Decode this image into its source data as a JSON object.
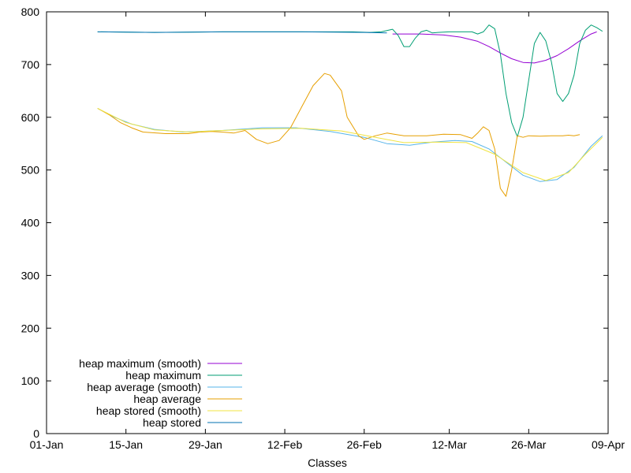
{
  "chart_data": {
    "type": "line",
    "title": "",
    "xlabel": "Classes",
    "ylabel": "",
    "x_axis": {
      "type": "date",
      "min": "2024-01-01",
      "max": "2024-04-09",
      "ticks": [
        {
          "date": "2024-01-01",
          "label": "01-Jan"
        },
        {
          "date": "2024-01-15",
          "label": "15-Jan"
        },
        {
          "date": "2024-01-29",
          "label": "29-Jan"
        },
        {
          "date": "2024-02-12",
          "label": "12-Feb"
        },
        {
          "date": "2024-02-26",
          "label": "26-Feb"
        },
        {
          "date": "2024-03-12",
          "label": "12-Mar"
        },
        {
          "date": "2024-03-26",
          "label": "26-Mar"
        },
        {
          "date": "2024-04-09",
          "label": "09-Apr"
        }
      ]
    },
    "y_axis": {
      "min": 0,
      "max": 800,
      "ticks": [
        0,
        100,
        200,
        300,
        400,
        500,
        600,
        700,
        800
      ]
    },
    "grid": false,
    "legend_position": "bottom-left",
    "series": [
      {
        "name": "heap maximum (smooth)",
        "color": "#9400d3",
        "points": [
          [
            "2024-03-02",
            758
          ],
          [
            "2024-03-07",
            758
          ],
          [
            "2024-03-11",
            756
          ],
          [
            "2024-03-14",
            752
          ],
          [
            "2024-03-17",
            744
          ],
          [
            "2024-03-19",
            734
          ],
          [
            "2024-03-21",
            722
          ],
          [
            "2024-03-23",
            711
          ],
          [
            "2024-03-25",
            704
          ],
          [
            "2024-03-27",
            703
          ],
          [
            "2024-03-29",
            708
          ],
          [
            "2024-03-31",
            717
          ],
          [
            "2024-04-02",
            730
          ],
          [
            "2024-04-04",
            745
          ],
          [
            "2024-04-06",
            758
          ],
          [
            "2024-04-07",
            762
          ]
        ]
      },
      {
        "name": "heap maximum",
        "color": "#009e73",
        "points": [
          [
            "2024-01-10",
            762
          ],
          [
            "2024-01-20",
            761
          ],
          [
            "2024-02-01",
            762
          ],
          [
            "2024-02-15",
            762
          ],
          [
            "2024-02-24",
            762
          ],
          [
            "2024-02-27",
            761
          ],
          [
            "2024-02-29",
            762
          ],
          [
            "2024-03-02",
            767
          ],
          [
            "2024-03-03",
            755
          ],
          [
            "2024-03-04",
            734
          ],
          [
            "2024-03-05",
            734
          ],
          [
            "2024-03-06",
            750
          ],
          [
            "2024-03-07",
            762
          ],
          [
            "2024-03-08",
            765
          ],
          [
            "2024-03-09",
            760
          ],
          [
            "2024-03-10",
            761
          ],
          [
            "2024-03-12",
            762
          ],
          [
            "2024-03-14",
            762
          ],
          [
            "2024-03-16",
            762
          ],
          [
            "2024-03-17",
            758
          ],
          [
            "2024-03-18",
            762
          ],
          [
            "2024-03-19",
            775
          ],
          [
            "2024-03-20",
            768
          ],
          [
            "2024-03-21",
            720
          ],
          [
            "2024-03-22",
            645
          ],
          [
            "2024-03-23",
            590
          ],
          [
            "2024-03-24",
            563
          ],
          [
            "2024-03-25",
            600
          ],
          [
            "2024-03-26",
            670
          ],
          [
            "2024-03-27",
            740
          ],
          [
            "2024-03-28",
            761
          ],
          [
            "2024-03-29",
            745
          ],
          [
            "2024-03-30",
            705
          ],
          [
            "2024-03-31",
            645
          ],
          [
            "2024-04-01",
            630
          ],
          [
            "2024-04-02",
            645
          ],
          [
            "2024-04-03",
            680
          ],
          [
            "2024-04-04",
            740
          ],
          [
            "2024-04-05",
            765
          ],
          [
            "2024-04-06",
            775
          ],
          [
            "2024-04-07",
            770
          ],
          [
            "2024-04-08",
            763
          ]
        ]
      },
      {
        "name": "heap average (smooth)",
        "color": "#56b4e9",
        "points": [
          [
            "2024-01-10",
            617
          ],
          [
            "2024-01-13",
            600
          ],
          [
            "2024-01-16",
            587
          ],
          [
            "2024-01-20",
            577
          ],
          [
            "2024-01-25",
            572
          ],
          [
            "2024-02-01",
            575
          ],
          [
            "2024-02-08",
            580
          ],
          [
            "2024-02-14",
            580
          ],
          [
            "2024-02-20",
            573
          ],
          [
            "2024-02-26",
            562
          ],
          [
            "2024-03-01",
            550
          ],
          [
            "2024-03-05",
            547
          ],
          [
            "2024-03-09",
            553
          ],
          [
            "2024-03-13",
            556
          ],
          [
            "2024-03-16",
            554
          ],
          [
            "2024-03-19",
            540
          ],
          [
            "2024-03-22",
            515
          ],
          [
            "2024-03-25",
            490
          ],
          [
            "2024-03-28",
            478
          ],
          [
            "2024-03-31",
            482
          ],
          [
            "2024-04-03",
            505
          ],
          [
            "2024-04-06",
            545
          ],
          [
            "2024-04-08",
            565
          ]
        ]
      },
      {
        "name": "heap average",
        "color": "#e69f00",
        "points": [
          [
            "2024-01-10",
            617
          ],
          [
            "2024-01-12",
            605
          ],
          [
            "2024-01-14",
            590
          ],
          [
            "2024-01-16",
            580
          ],
          [
            "2024-01-18",
            572
          ],
          [
            "2024-01-22",
            569
          ],
          [
            "2024-01-26",
            569
          ],
          [
            "2024-01-28",
            572
          ],
          [
            "2024-01-30",
            573
          ],
          [
            "2024-02-01",
            572
          ],
          [
            "2024-02-03",
            570
          ],
          [
            "2024-02-05",
            575
          ],
          [
            "2024-02-07",
            558
          ],
          [
            "2024-02-09",
            550
          ],
          [
            "2024-02-11",
            556
          ],
          [
            "2024-02-13",
            580
          ],
          [
            "2024-02-15",
            620
          ],
          [
            "2024-02-17",
            660
          ],
          [
            "2024-02-19",
            683
          ],
          [
            "2024-02-20",
            680
          ],
          [
            "2024-02-22",
            650
          ],
          [
            "2024-02-23",
            600
          ],
          [
            "2024-02-25",
            565
          ],
          [
            "2024-02-26",
            558
          ],
          [
            "2024-02-28",
            565
          ],
          [
            "2024-03-01",
            570
          ],
          [
            "2024-03-04",
            565
          ],
          [
            "2024-03-08",
            565
          ],
          [
            "2024-03-11",
            568
          ],
          [
            "2024-03-14",
            567
          ],
          [
            "2024-03-16",
            560
          ],
          [
            "2024-03-17",
            570
          ],
          [
            "2024-03-18",
            582
          ],
          [
            "2024-03-19",
            575
          ],
          [
            "2024-03-20",
            540
          ],
          [
            "2024-03-21",
            465
          ],
          [
            "2024-03-22",
            450
          ],
          [
            "2024-03-23",
            500
          ],
          [
            "2024-03-24",
            565
          ],
          [
            "2024-03-25",
            562
          ],
          [
            "2024-03-26",
            565
          ],
          [
            "2024-03-28",
            564
          ],
          [
            "2024-03-30",
            565
          ],
          [
            "2024-04-01",
            565
          ],
          [
            "2024-04-02",
            566
          ],
          [
            "2024-04-03",
            565
          ],
          [
            "2024-04-04",
            567
          ]
        ]
      },
      {
        "name": "heap stored (smooth)",
        "color": "#f0e442",
        "points": [
          [
            "2024-01-10",
            617
          ],
          [
            "2024-01-15",
            590
          ],
          [
            "2024-01-20",
            576
          ],
          [
            "2024-01-26",
            572
          ],
          [
            "2024-02-01",
            575
          ],
          [
            "2024-02-08",
            578
          ],
          [
            "2024-02-15",
            579
          ],
          [
            "2024-02-22",
            574
          ],
          [
            "2024-02-28",
            562
          ],
          [
            "2024-03-04",
            552
          ],
          [
            "2024-03-10",
            553
          ],
          [
            "2024-03-15",
            552
          ],
          [
            "2024-03-20",
            530
          ],
          [
            "2024-03-25",
            495
          ],
          [
            "2024-03-29",
            480
          ],
          [
            "2024-04-02",
            495
          ],
          [
            "2024-04-05",
            530
          ],
          [
            "2024-04-08",
            562
          ]
        ]
      },
      {
        "name": "heap stored",
        "color": "#0072b2",
        "points": [
          [
            "2024-01-10",
            762
          ],
          [
            "2024-01-20",
            761
          ],
          [
            "2024-02-01",
            762
          ],
          [
            "2024-02-15",
            762
          ],
          [
            "2024-02-26",
            761
          ],
          [
            "2024-03-01",
            760
          ]
        ]
      }
    ]
  }
}
